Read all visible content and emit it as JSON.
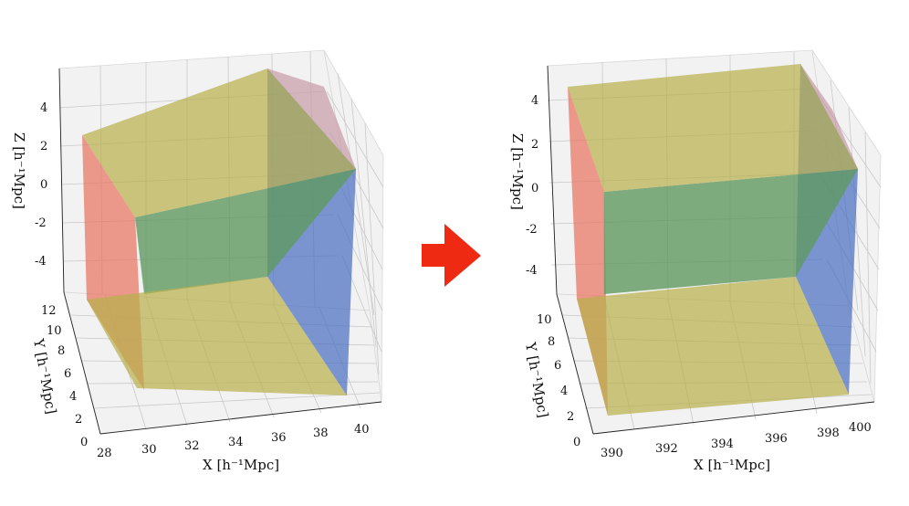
{
  "left_plot": {
    "x_label": "X [h⁻¹Mpc]",
    "y_label": "Y [h⁻¹Mpc]",
    "z_label": "Z [h⁻¹Mpc]",
    "x_ticks": [
      "28",
      "30",
      "32",
      "34",
      "36",
      "38",
      "40"
    ],
    "y_ticks": [
      "0",
      "2",
      "4",
      "6",
      "8",
      "10",
      "12"
    ],
    "z_ticks": [
      "-4",
      "-2",
      "0",
      "2",
      "4"
    ]
  },
  "right_plot": {
    "x_label": "X [h⁻¹Mpc]",
    "y_label": "Y [h⁻¹Mpc]",
    "z_label": "Z [h⁻¹Mpc]",
    "x_ticks": [
      "390",
      "392",
      "394",
      "396",
      "398",
      "400"
    ],
    "y_ticks": [
      "0",
      "2",
      "4",
      "6",
      "8",
      "10"
    ],
    "z_ticks": [
      "-4",
      "-2",
      "0",
      "2",
      "4"
    ]
  },
  "colors": {
    "red_face": "#e8735f",
    "blue_face": "#4a6fbf",
    "yellow_face": "#b8b04e",
    "green_face": "#5f9960",
    "arrow": "#ee2a12"
  },
  "icons": {
    "transition": "right-arrow-icon"
  }
}
